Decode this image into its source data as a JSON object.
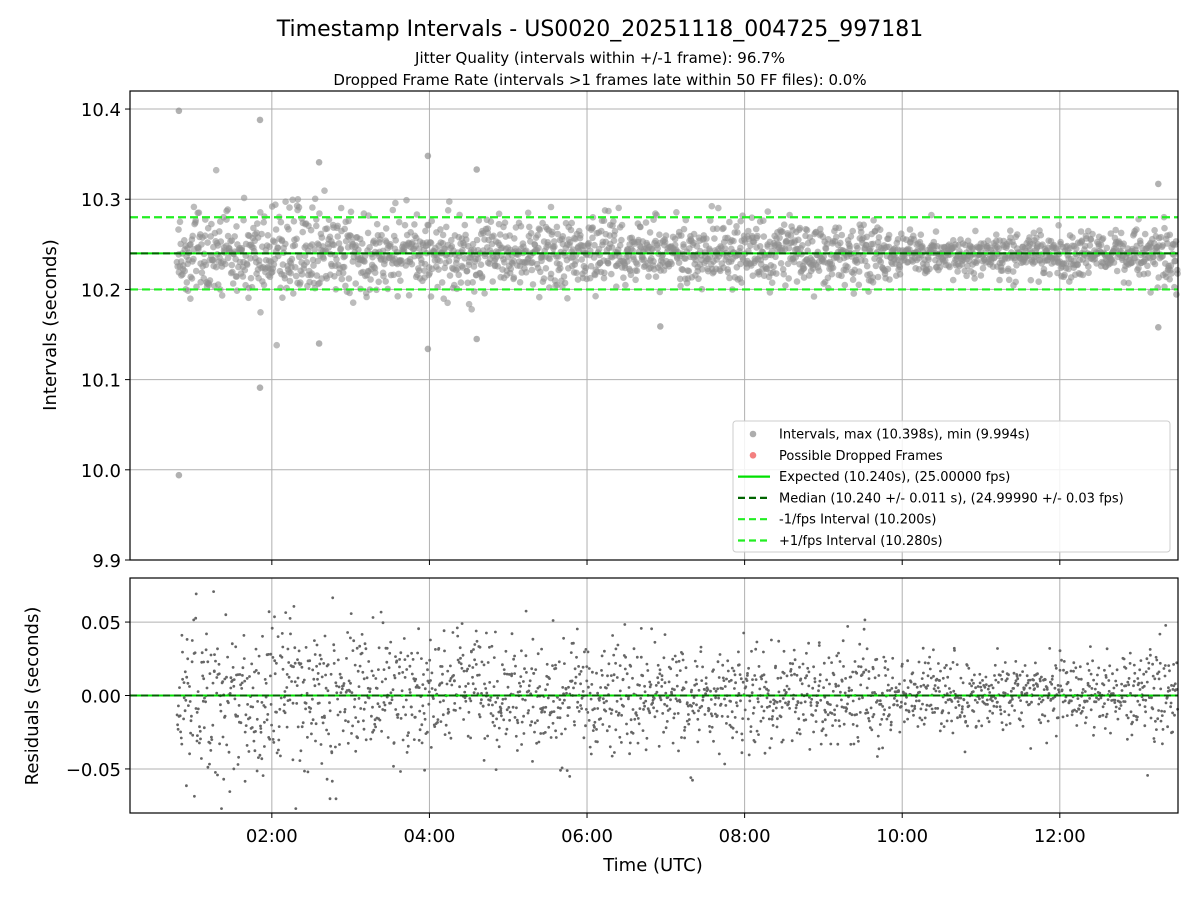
{
  "title": "Timestamp Intervals - US0020_20251118_004725_997181",
  "subtitle_lines": [
    "Jitter Quality (intervals within +/-1 frame): 96.7%",
    "Dropped Frame Rate (intervals >1 frames late within 50 FF files): 0.0%"
  ],
  "colors": {
    "points": "#808080",
    "dropped": "#f08080",
    "expected": "#00e000",
    "median": "#006400",
    "interval": "#22ee22",
    "grid": "#b0b0b0"
  },
  "chart_data": [
    {
      "type": "scatter",
      "name": "intervals-panel",
      "ylabel": "Intervals (seconds)",
      "xlim": [
        0.2,
        13.5
      ],
      "ylim": [
        9.9,
        10.42
      ],
      "yticks": [
        9.9,
        10.0,
        10.1,
        10.2,
        10.3,
        10.4
      ],
      "ytick_labels": [
        "9.9",
        "10.0",
        "10.1",
        "10.2",
        "10.3",
        "10.4"
      ],
      "grid": true,
      "hlines": {
        "expected": 10.24,
        "median": 10.24,
        "minus_interval": 10.2,
        "plus_interval": 10.28
      },
      "scatter_summary": {
        "n_points": 2100,
        "x_start": 0.8,
        "x_end": 13.5,
        "center": 10.24,
        "max": 10.398,
        "min": 9.994
      },
      "notable_points": [
        {
          "x": 0.82,
          "y": 10.398
        },
        {
          "x": 0.82,
          "y": 9.994
        },
        {
          "x": 1.85,
          "y": 10.388
        },
        {
          "x": 1.85,
          "y": 10.091
        },
        {
          "x": 3.98,
          "y": 10.348
        },
        {
          "x": 3.98,
          "y": 10.134
        },
        {
          "x": 4.6,
          "y": 10.333
        },
        {
          "x": 4.6,
          "y": 10.145
        },
        {
          "x": 2.6,
          "y": 10.341
        },
        {
          "x": 2.6,
          "y": 10.14
        },
        {
          "x": 6.93,
          "y": 10.159
        },
        {
          "x": 13.25,
          "y": 10.317
        },
        {
          "x": 13.25,
          "y": 10.158
        }
      ],
      "legend": {
        "position": "lower right",
        "entries": [
          {
            "kind": "scatter",
            "color": "#999999",
            "label": "Intervals, max (10.398s), min (9.994s)"
          },
          {
            "kind": "scatter",
            "color": "#f06060",
            "label": "Possible Dropped Frames"
          },
          {
            "kind": "line",
            "color": "#00e000",
            "dash": "solid",
            "label": "Expected (10.240s), (25.00000 fps)"
          },
          {
            "kind": "line",
            "color": "#006400",
            "dash": "dashed",
            "label": "Median (10.240 +/- 0.011 s), (24.99990 +/- 0.03 fps)"
          },
          {
            "kind": "line",
            "color": "#22ee22",
            "dash": "dashed",
            "label": "-1/fps Interval (10.200s)"
          },
          {
            "kind": "line",
            "color": "#22ee22",
            "dash": "dashed",
            "label": "+1/fps Interval (10.280s)"
          }
        ]
      }
    },
    {
      "type": "scatter",
      "name": "residuals-panel",
      "ylabel": "Residuals (seconds)",
      "xlabel": "Time (UTC)",
      "xlim": [
        0.2,
        13.5
      ],
      "ylim": [
        -0.08,
        0.08
      ],
      "yticks": [
        -0.05,
        0.0,
        0.05
      ],
      "ytick_labels": [
        "−0.05",
        "0.00",
        "0.05"
      ],
      "xticks": [
        2,
        4,
        6,
        8,
        10,
        12
      ],
      "xtick_labels": [
        "02:00",
        "04:00",
        "06:00",
        "08:00",
        "10:00",
        "12:00"
      ],
      "grid": true,
      "hlines": {
        "zero": 0.0
      },
      "scatter_summary": {
        "n_points": 2100,
        "x_start": 0.8,
        "x_end": 13.5,
        "center": 0.0
      }
    }
  ]
}
